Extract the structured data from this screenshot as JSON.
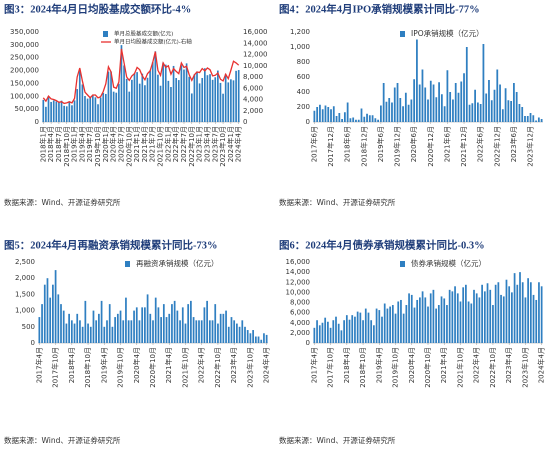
{
  "chart_data": [
    {
      "type": "bar",
      "title": "图3：2024年4月日均股基成交额环比-4%",
      "source": "数据来源：Wind、开源证券研究所",
      "legend": "top",
      "grid": false,
      "categories": [
        "2018年1月",
        null,
        null,
        "2018年4月",
        null,
        null,
        "2018年7月",
        null,
        null,
        "2018年10月",
        null,
        null,
        "2019年1月",
        null,
        null,
        "2019年4月",
        null,
        null,
        "2019年7月",
        null,
        null,
        "2019年10月",
        null,
        null,
        "2020年1月",
        null,
        null,
        "2020年4月",
        null,
        null,
        "2020年7月",
        null,
        null,
        "2020年10月",
        null,
        null,
        "2021年1月",
        null,
        null,
        "2021年4月",
        null,
        null,
        "2021年7月",
        null,
        null,
        "2021年10月",
        null,
        null,
        "2022年1月",
        null,
        null,
        "2022年4月",
        null,
        null,
        "2022年7月",
        null,
        null,
        "2022年10月",
        null,
        null,
        "2023年1月",
        null,
        null,
        "2023年4月",
        null,
        null,
        "2023年7月",
        null,
        null,
        "2023年10月",
        null,
        null,
        "2024年1月",
        null,
        null,
        "2024年4月"
      ],
      "series": [
        {
          "name": "单月总股基成交额(亿元)",
          "color": "#2f7fc1",
          "values": [
            86000,
            59000,
            101000,
            78000,
            84000,
            80000,
            77000,
            83000,
            63000,
            61000,
            79000,
            65000,
            84000,
            128000,
            202000,
            146000,
            101000,
            91000,
            99000,
            106000,
            96000,
            69000,
            95000,
            113000,
            109000,
            196000,
            196000,
            118000,
            114000,
            149000,
            299000,
            220000,
            168000,
            118000,
            164000,
            189000,
            194000,
            149000,
            188000,
            143000,
            172000,
            200000,
            233000,
            275000,
            184000,
            141000,
            231000,
            223000,
            160000,
            136000,
            218000,
            171000,
            163000,
            221000,
            204000,
            228000,
            176000,
            111000,
            185000,
            196000,
            150000,
            171000,
            209000,
            182000,
            186000,
            164000,
            174000,
            200000,
            152000,
            110000,
            187000,
            154000,
            166000,
            162000,
            199000,
            202000
          ]
        },
        {
          "name": "单月日均股基成交额(亿元)-右轴",
          "color": "#e8312f",
          "type": "line",
          "axis": "y2",
          "values": [
            4300,
            3700,
            4600,
            4100,
            4000,
            3800,
            3500,
            3600,
            3300,
            3400,
            3600,
            3400,
            4200,
            8000,
            9600,
            7300,
            5300,
            4800,
            4300,
            4800,
            4800,
            4300,
            4500,
            5400,
            6800,
            9800,
            8900,
            6200,
            6000,
            7100,
            13000,
            10500,
            8000,
            7400,
            8200,
            8600,
            9700,
            9300,
            8200,
            7500,
            8600,
            9100,
            10600,
            12500,
            9200,
            8300,
            10500,
            9700,
            10000,
            8500,
            9500,
            9000,
            8600,
            10500,
            9700,
            9900,
            8400,
            7400,
            8400,
            8900,
            8800,
            9500,
            9100,
            9600,
            9300,
            8200,
            8300,
            8700,
            7600,
            7300,
            8500,
            7700,
            9200,
            10800,
            10500,
            10100
          ]
        }
      ],
      "ylim": [
        0,
        350000
      ],
      "yticks": [
        0,
        {
          "value": 50000,
          "label": "50,000"
        },
        {
          "value": 100000,
          "label": "100,000"
        },
        {
          "value": 150000,
          "label": "150,000"
        },
        {
          "value": 200000,
          "label": "200,000"
        },
        {
          "value": 250000,
          "label": "250,000"
        },
        {
          "value": 300000,
          "label": "300,000"
        },
        {
          "value": 350000,
          "label": "350,000"
        }
      ],
      "y2lim": [
        0,
        16000
      ],
      "y2ticks": [
        0,
        {
          "value": 2000,
          "label": "2,000"
        },
        {
          "value": 4000,
          "label": "4,000"
        },
        {
          "value": 6000,
          "label": "6,000"
        },
        {
          "value": 8000,
          "label": "8,000"
        },
        {
          "value": 10000,
          "label": "10,000"
        },
        {
          "value": 12000,
          "label": "12,000"
        },
        {
          "value": 14000,
          "label": "14,000"
        },
        {
          "value": 16000,
          "label": "16,000"
        }
      ]
    },
    {
      "type": "bar",
      "title": "图4：2024年4月IPO承销规模累计同比-77%",
      "source": "数据来源：Wind、开源证券研究所",
      "legend": "top",
      "grid": false,
      "categories": [
        "2017年6月",
        null,
        null,
        null,
        null,
        null,
        "2017年12月",
        null,
        null,
        null,
        null,
        null,
        "2018年6月",
        null,
        null,
        null,
        null,
        null,
        "2018年12月",
        null,
        null,
        null,
        null,
        null,
        "2019年6月",
        null,
        null,
        null,
        null,
        null,
        "2019年12月",
        null,
        null,
        null,
        null,
        null,
        "2020年6月",
        null,
        null,
        null,
        null,
        null,
        "2020年12月",
        null,
        null,
        null,
        null,
        null,
        "2021年6月",
        null,
        null,
        null,
        null,
        null,
        "2021年12月",
        null,
        null,
        null,
        null,
        null,
        "2022年6月",
        null,
        null,
        null,
        null,
        null,
        "2022年12月",
        null,
        null,
        null,
        null,
        null,
        "2023年6月",
        null,
        null,
        null,
        null,
        null,
        "2023年12月",
        null,
        null,
        null,
        null
      ],
      "series": [
        {
          "name": "IPO承销规模（亿元）",
          "color": "#2f7fc1",
          "values": [
            150,
            200,
            230,
            170,
            220,
            200,
            170,
            210,
            80,
            120,
            40,
            130,
            260,
            50,
            60,
            30,
            30,
            180,
            70,
            110,
            90,
            90,
            50,
            30,
            220,
            520,
            270,
            320,
            260,
            460,
            520,
            320,
            210,
            390,
            230,
            300,
            570,
            1100,
            500,
            700,
            460,
            300,
            550,
            500,
            330,
            530,
            370,
            210,
            690,
            400,
            300,
            520,
            390,
            540,
            650,
            1000,
            230,
            250,
            430,
            260,
            240,
            1040,
            380,
            560,
            290,
            430,
            700,
            500,
            170,
            450,
            290,
            280,
            520,
            400,
            240,
            200,
            80,
            80,
            120,
            90,
            20,
            60,
            40
          ]
        }
      ],
      "ylim": [
        0,
        1200
      ],
      "yticks": [
        0,
        200,
        400,
        600,
        800,
        {
          "value": 1000,
          "label": "1,000"
        },
        {
          "value": 1200,
          "label": "1,200"
        }
      ]
    },
    {
      "type": "bar",
      "title": "图5：2024年4月再融资承销规模累计同比-73%",
      "source": "数据来源：Wind、开源证券研究所",
      "legend": "top",
      "grid": false,
      "categories": [
        "2017年4月",
        null,
        null,
        null,
        null,
        null,
        "2017年10月",
        null,
        null,
        null,
        null,
        null,
        "2018年4月",
        null,
        null,
        null,
        null,
        null,
        "2018年10月",
        null,
        null,
        null,
        null,
        null,
        "2019年4月",
        null,
        null,
        null,
        null,
        null,
        "2019年10月",
        null,
        null,
        null,
        null,
        null,
        "2020年4月",
        null,
        null,
        null,
        null,
        null,
        "2020年10月",
        null,
        null,
        null,
        null,
        null,
        "2021年4月",
        null,
        null,
        null,
        null,
        null,
        "2021年10月",
        null,
        null,
        null,
        null,
        null,
        "2022年4月",
        null,
        null,
        null,
        null,
        null,
        "2022年10月",
        null,
        null,
        null,
        null,
        null,
        "2023年4月",
        null,
        null,
        null,
        null,
        null,
        "2023年10月",
        null,
        null,
        null,
        null,
        null,
        "2024年4月"
      ],
      "series": [
        {
          "name": "再融资承销规模（亿元）",
          "color": "#2f7fc1",
          "values": [
            800,
            1200,
            1800,
            2000,
            1400,
            1800,
            2250,
            1500,
            1200,
            1000,
            600,
            900,
            700,
            600,
            900,
            700,
            500,
            1300,
            600,
            500,
            1000,
            700,
            900,
            1300,
            500,
            700,
            1200,
            500,
            800,
            900,
            1000,
            700,
            1400,
            700,
            700,
            1000,
            1100,
            700,
            1100,
            1100,
            1500,
            900,
            700,
            1400,
            1100,
            800,
            1200,
            800,
            900,
            1200,
            1300,
            1000,
            700,
            1100,
            600,
            1200,
            1300,
            800,
            700,
            700,
            700,
            1100,
            1300,
            700,
            700,
            1200,
            600,
            900,
            900,
            1000,
            500,
            800,
            700,
            600,
            500,
            700,
            500,
            400,
            300,
            400,
            200,
            200,
            100,
            300,
            250
          ]
        }
      ],
      "ylim": [
        0,
        2500
      ],
      "yticks": [
        0,
        500,
        {
          "value": 1000,
          "label": "1,000"
        },
        {
          "value": 1500,
          "label": "1,500"
        },
        {
          "value": 2000,
          "label": "2,000"
        },
        {
          "value": 2500,
          "label": "2,500"
        }
      ]
    },
    {
      "type": "bar",
      "title": "图6：2024年4月债券承销规模累计同比-0.3%",
      "source": "数据来源：Wind、开源证券研究所",
      "legend": "top",
      "grid": false,
      "categories": [
        "2017年4月",
        null,
        null,
        null,
        null,
        null,
        "2017年10月",
        null,
        null,
        null,
        null,
        null,
        "2018年4月",
        null,
        null,
        null,
        null,
        null,
        "2018年10月",
        null,
        null,
        null,
        null,
        null,
        "2019年4月",
        null,
        null,
        null,
        null,
        null,
        "2019年10月",
        null,
        null,
        null,
        null,
        null,
        "2020年4月",
        null,
        null,
        null,
        null,
        null,
        "2020年10月",
        null,
        null,
        null,
        null,
        null,
        "2021年4月",
        null,
        null,
        null,
        null,
        null,
        "2021年10月",
        null,
        null,
        null,
        null,
        null,
        "2022年4月",
        null,
        null,
        null,
        null,
        null,
        "2022年10月",
        null,
        null,
        null,
        null,
        null,
        "2023年4月",
        null,
        null,
        null,
        null,
        null,
        "2023年10月",
        null,
        null,
        null,
        null,
        null,
        "2024年4月"
      ],
      "series": [
        {
          "name": "债券承销规模（亿元）",
          "color": "#2f7fc1",
          "values": [
            3000,
            4500,
            3500,
            4000,
            5000,
            4200,
            3000,
            4500,
            5200,
            3800,
            2500,
            4500,
            5500,
            4600,
            5500,
            5200,
            6200,
            6000,
            4500,
            6800,
            6000,
            4500,
            3500,
            6800,
            6500,
            5200,
            7800,
            6800,
            7200,
            7500,
            5800,
            8200,
            8500,
            5800,
            7500,
            9800,
            9500,
            7000,
            8500,
            9000,
            10200,
            9000,
            7200,
            9800,
            10500,
            6800,
            7500,
            9200,
            8800,
            7500,
            10500,
            10200,
            11200,
            9800,
            8200,
            11000,
            11500,
            8200,
            7800,
            10500,
            9800,
            9000,
            11500,
            10200,
            11800,
            10500,
            7500,
            11500,
            12000,
            9500,
            9200,
            12500,
            11200,
            10000,
            13800,
            11500,
            14000,
            12000,
            9000,
            12800,
            12000,
            9500,
            8500,
            12000,
            11200
          ]
        }
      ],
      "ylim": [
        0,
        16000
      ],
      "yticks": [
        0,
        {
          "value": 2000,
          "label": "2,000"
        },
        {
          "value": 4000,
          "label": "4,000"
        },
        {
          "value": 6000,
          "label": "6,000"
        },
        {
          "value": 8000,
          "label": "8,000"
        },
        {
          "value": 10000,
          "label": "10,000"
        },
        {
          "value": 12000,
          "label": "12,000"
        },
        {
          "value": 14000,
          "label": "14,000"
        },
        {
          "value": 16000,
          "label": "16,000"
        }
      ]
    }
  ]
}
